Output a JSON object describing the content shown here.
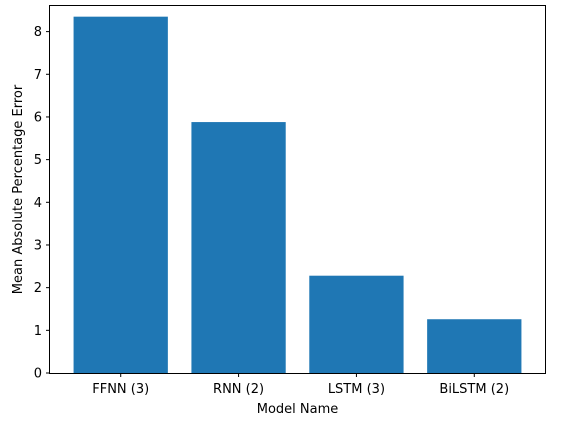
{
  "chart_data": {
    "type": "bar",
    "categories": [
      "FFNN (3)",
      "RNN (2)",
      "LSTM (3)",
      "BiLSTM (2)"
    ],
    "values": [
      8.35,
      5.88,
      2.28,
      1.26
    ],
    "title": "",
    "xlabel": "Model Name",
    "ylabel": "Mean Absolute Percentage Error",
    "ylim": [
      0,
      8.6
    ],
    "yticks": [
      0,
      1,
      2,
      3,
      4,
      5,
      6,
      7,
      8
    ],
    "bar_color": "#1f77b4",
    "grid": false
  }
}
